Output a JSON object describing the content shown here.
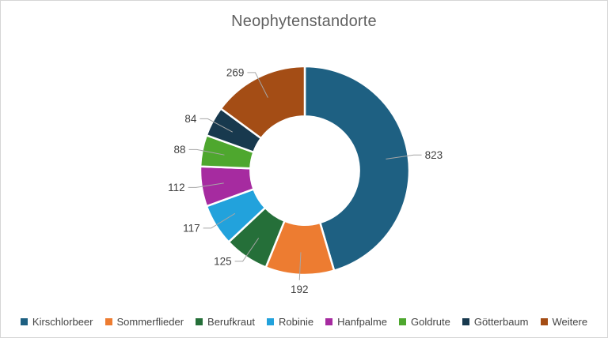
{
  "chart_data": {
    "type": "pie",
    "subtype": "donut",
    "title": "Neophytenstandorte",
    "categories": [
      "Kirschlorbeer",
      "Sommerflieder",
      "Berufkraut",
      "Robinie",
      "Hanfpalme",
      "Goldrute",
      "Götterbaum",
      "Weitere"
    ],
    "values": [
      823,
      192,
      125,
      117,
      112,
      88,
      84,
      269
    ],
    "colors": [
      "#1E6082",
      "#ED7C31",
      "#256F39",
      "#22A2DC",
      "#A62BA0",
      "#4EA72E",
      "#18394E",
      "#A44D15"
    ],
    "total": 1810,
    "start_angle_deg": 0,
    "direction": "clockwise",
    "inner_radius_ratio": 0.52,
    "data_labels": "values",
    "label_text_color": "#404040",
    "leader_line_color": "#A6A6A6",
    "title_color": "#616161",
    "legend_position": "bottom",
    "background": "#FFFFFF"
  }
}
